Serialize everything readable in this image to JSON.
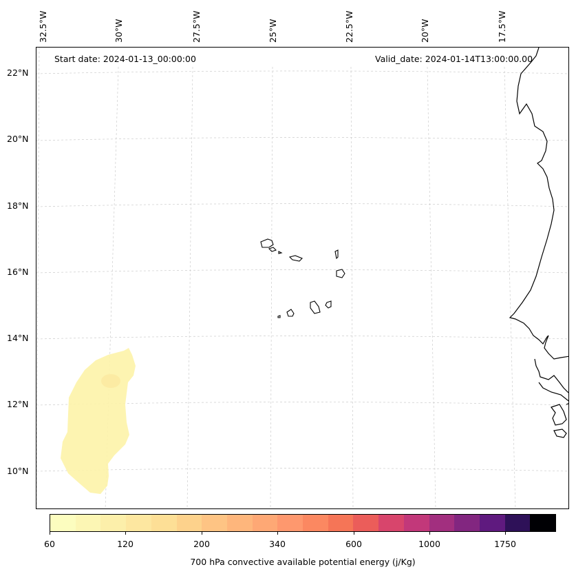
{
  "map": {
    "start_date": "Start date: 2024-01-13_00:00:00",
    "valid_date": "Valid_date: 2024-01-14T13:00:00.00",
    "lon_labels": [
      "32.5°W",
      "30°W",
      "27.5°W",
      "25°W",
      "22.5°W",
      "20°W",
      "17.5°W"
    ],
    "lat_labels": [
      "22°N",
      "20°N",
      "18°N",
      "16°N",
      "14°N",
      "12°N",
      "10°N"
    ],
    "field_color": "#fdf3a8",
    "field_core_color": "#fbe9a0",
    "coast_color": "#000000",
    "grid_color": "#cccccc"
  },
  "colorbar": {
    "label": "700 hPa convective available potential energy (j/Kg)",
    "tick_labels": [
      "60",
      "120",
      "200",
      "340",
      "600",
      "1000",
      "1750"
    ],
    "colors": [
      "#fcfdbf",
      "#fcf6b4",
      "#fcefaa",
      "#fde7a0",
      "#fddf96",
      "#fdd28c",
      "#fec484",
      "#feb67c",
      "#fea875",
      "#fe986e",
      "#fb8861",
      "#f57557",
      "#eb5d5a",
      "#d8456c",
      "#c2387a",
      "#a22f7f",
      "#822680",
      "#5f1a7f",
      "#2e1158",
      "#000004"
    ]
  }
}
